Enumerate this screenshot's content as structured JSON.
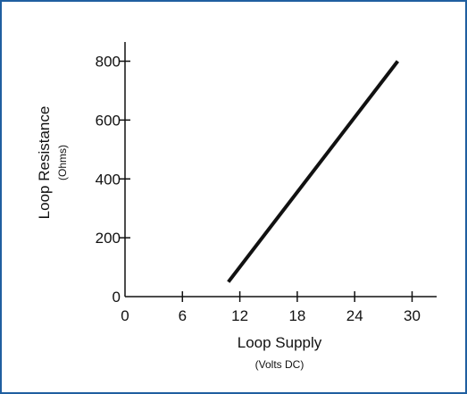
{
  "chart_data": {
    "type": "line",
    "title": "",
    "xlabel": "Loop Supply",
    "xlabel_sub": "(Volts DC)",
    "ylabel": "Loop Resistance",
    "ylabel_sub": "(Ohms)",
    "xlim": [
      0,
      32
    ],
    "ylim": [
      0,
      840
    ],
    "xticks": [
      0,
      6,
      12,
      18,
      24,
      30
    ],
    "yticks": [
      0,
      200,
      400,
      600,
      800
    ],
    "grid": false,
    "series": [
      {
        "x": [
          10.8,
          28.5
        ],
        "y": [
          50,
          800
        ],
        "color": "#111111"
      }
    ]
  },
  "frame": {
    "border_color": "#1f5fa0"
  }
}
